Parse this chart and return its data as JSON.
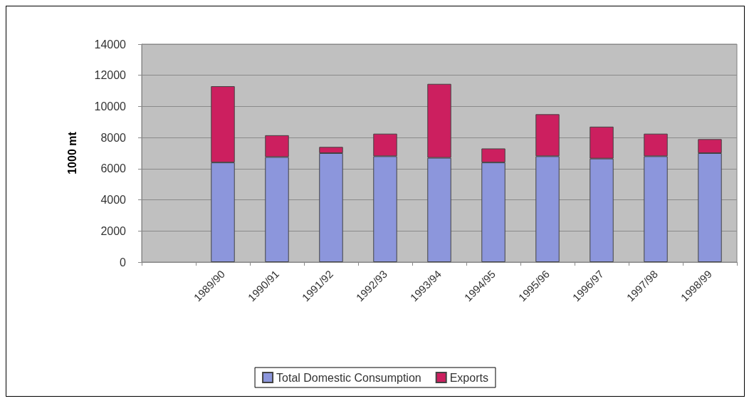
{
  "chart_data": {
    "type": "bar",
    "ylabel": "1000 mt",
    "stacked": true,
    "categories": [
      null,
      "1989/90",
      "1990/91",
      "1991/92",
      "1992/93",
      "1993/94",
      "1994/95",
      "1995/96",
      "1996/97",
      "1997/98",
      "1998/99"
    ],
    "series": [
      {
        "name": "Total Domestic Consumption",
        "color": "#8c96dc",
        "values": [
          null,
          6400,
          6750,
          7000,
          6800,
          6700,
          6400,
          6800,
          6650,
          6800,
          7000
        ]
      },
      {
        "name": "Exports",
        "color": "#cc1f5f",
        "values": [
          null,
          4900,
          1400,
          400,
          1450,
          4750,
          900,
          2700,
          2050,
          1450,
          900
        ]
      }
    ],
    "ylim": [
      0,
      14000
    ],
    "yticks": [
      0,
      2000,
      4000,
      6000,
      8000,
      10000,
      12000,
      14000
    ],
    "grid": "y",
    "legend": "bottom"
  }
}
